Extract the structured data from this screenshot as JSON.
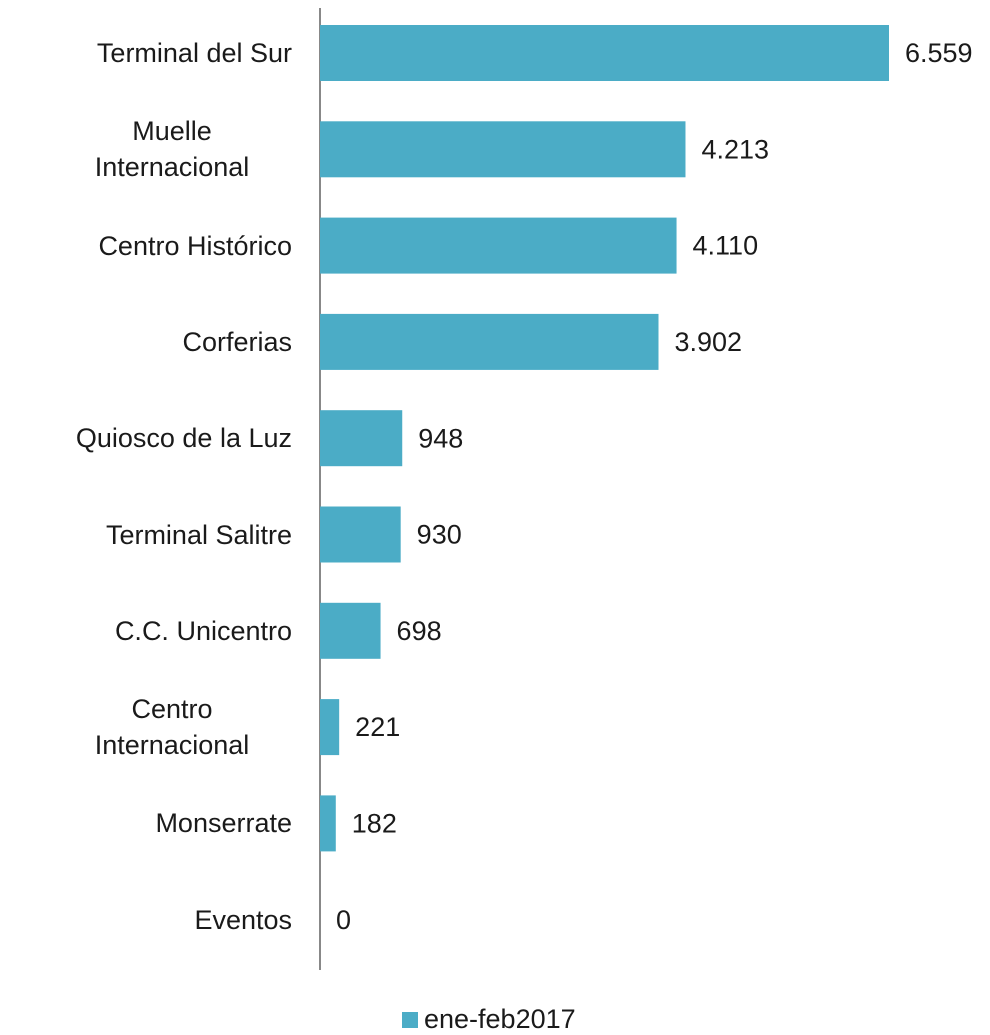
{
  "chart_data": {
    "type": "bar",
    "orientation": "horizontal",
    "categories": [
      "Terminal del Sur",
      "Muelle Internacional",
      "Centro Histórico",
      "Corferias",
      "Quiosco de la Luz",
      "Terminal Salitre",
      "C.C. Unicentro",
      "Centro Internacional",
      "Monserrate",
      "Eventos"
    ],
    "series": [
      {
        "name": "ene-feb2017",
        "color": "#4bacc6",
        "values": [
          6559,
          4213,
          4110,
          3902,
          948,
          930,
          698,
          221,
          182,
          0
        ],
        "value_labels": [
          "6.559",
          "4.213",
          "4.110",
          "3.902",
          "948",
          "930",
          "698",
          "221",
          "182",
          "0"
        ]
      }
    ],
    "legend": "bottom"
  }
}
